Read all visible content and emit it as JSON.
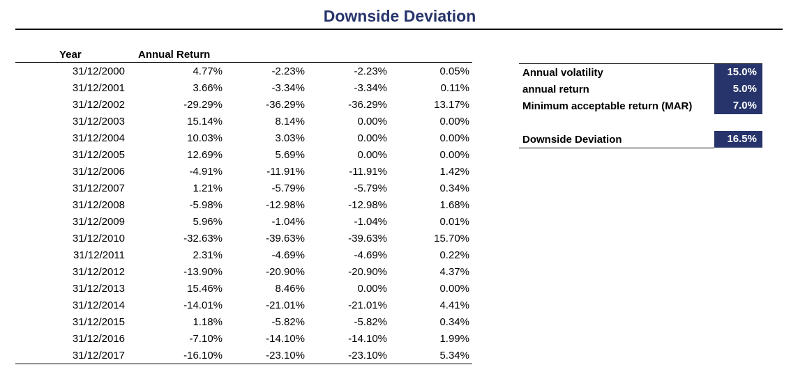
{
  "title": "Downside Deviation",
  "table": {
    "headers": {
      "year": "Year",
      "annual_return": "Annual Return"
    },
    "rows": [
      {
        "date": "31/12/2000",
        "annual_return": "4.77%",
        "excess": "-2.23%",
        "downside": "-2.23%",
        "squared": "0.05%"
      },
      {
        "date": "31/12/2001",
        "annual_return": "3.66%",
        "excess": "-3.34%",
        "downside": "-3.34%",
        "squared": "0.11%"
      },
      {
        "date": "31/12/2002",
        "annual_return": "-29.29%",
        "excess": "-36.29%",
        "downside": "-36.29%",
        "squared": "13.17%"
      },
      {
        "date": "31/12/2003",
        "annual_return": "15.14%",
        "excess": "8.14%",
        "downside": "0.00%",
        "squared": "0.00%"
      },
      {
        "date": "31/12/2004",
        "annual_return": "10.03%",
        "excess": "3.03%",
        "downside": "0.00%",
        "squared": "0.00%"
      },
      {
        "date": "31/12/2005",
        "annual_return": "12.69%",
        "excess": "5.69%",
        "downside": "0.00%",
        "squared": "0.00%"
      },
      {
        "date": "31/12/2006",
        "annual_return": "-4.91%",
        "excess": "-11.91%",
        "downside": "-11.91%",
        "squared": "1.42%"
      },
      {
        "date": "31/12/2007",
        "annual_return": "1.21%",
        "excess": "-5.79%",
        "downside": "-5.79%",
        "squared": "0.34%"
      },
      {
        "date": "31/12/2008",
        "annual_return": "-5.98%",
        "excess": "-12.98%",
        "downside": "-12.98%",
        "squared": "1.68%"
      },
      {
        "date": "31/12/2009",
        "annual_return": "5.96%",
        "excess": "-1.04%",
        "downside": "-1.04%",
        "squared": "0.01%"
      },
      {
        "date": "31/12/2010",
        "annual_return": "-32.63%",
        "excess": "-39.63%",
        "downside": "-39.63%",
        "squared": "15.70%"
      },
      {
        "date": "31/12/2011",
        "annual_return": "2.31%",
        "excess": "-4.69%",
        "downside": "-4.69%",
        "squared": "0.22%"
      },
      {
        "date": "31/12/2012",
        "annual_return": "-13.90%",
        "excess": "-20.90%",
        "downside": "-20.90%",
        "squared": "4.37%"
      },
      {
        "date": "31/12/2013",
        "annual_return": "15.46%",
        "excess": "8.46%",
        "downside": "0.00%",
        "squared": "0.00%"
      },
      {
        "date": "31/12/2014",
        "annual_return": "-14.01%",
        "excess": "-21.01%",
        "downside": "-21.01%",
        "squared": "4.41%"
      },
      {
        "date": "31/12/2015",
        "annual_return": "1.18%",
        "excess": "-5.82%",
        "downside": "-5.82%",
        "squared": "0.34%"
      },
      {
        "date": "31/12/2016",
        "annual_return": "-7.10%",
        "excess": "-14.10%",
        "downside": "-14.10%",
        "squared": "1.99%"
      },
      {
        "date": "31/12/2017",
        "annual_return": "-16.10%",
        "excess": "-23.10%",
        "downside": "-23.10%",
        "squared": "5.34%"
      }
    ]
  },
  "summary": {
    "annual_volatility": {
      "label": "Annual volatility",
      "value": "15.0%"
    },
    "annual_return": {
      "label": "annual return",
      "value": "5.0%"
    },
    "mar": {
      "label": "Minimum acceptable return (MAR)",
      "value": "7.0%"
    },
    "downside_deviation": {
      "label": "Downside Deviation",
      "value": "16.5%"
    }
  },
  "colors": {
    "accent": "#27346b",
    "highlight_text": "#ffffff"
  }
}
